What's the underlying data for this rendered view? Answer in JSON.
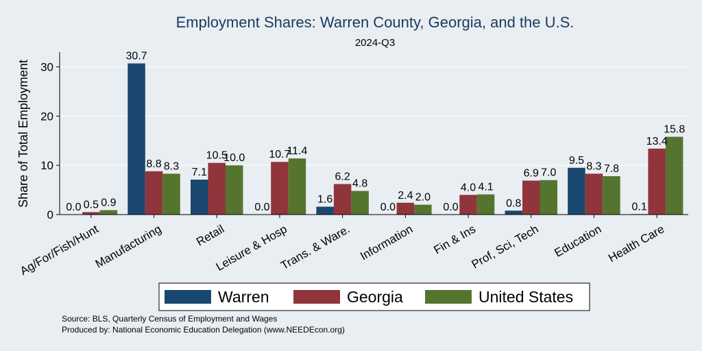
{
  "chart_data": {
    "type": "bar",
    "title": "Employment Shares: Warren County, Georgia, and the U.S.",
    "subtitle": "2024-Q3",
    "ylabel": "Share of Total Employment",
    "xlabel": "",
    "ylim": [
      0,
      33
    ],
    "yticks": [
      0,
      10,
      20,
      30
    ],
    "grid": true,
    "legend": "bottom",
    "categories": [
      "Ag/For/Fish/Hunt",
      "Manufacturing",
      "Retail",
      "Leisure & Hosp",
      "Trans. & Ware.",
      "Information",
      "Fin & Ins",
      "Prof, Sci, Tech",
      "Education",
      "Health Care"
    ],
    "series": [
      {
        "name": "Warren",
        "color": "#1a476f",
        "values": [
          0.0,
          30.7,
          7.1,
          0.0,
          1.6,
          0.0,
          0.0,
          0.8,
          9.5,
          0.1
        ],
        "labels": [
          "0.0",
          "30.7",
          "7.1",
          "0.0",
          "1.6",
          "0.0",
          "0.0",
          "0.8",
          "9.5",
          "0.1"
        ]
      },
      {
        "name": "Georgia",
        "color": "#90353b",
        "values": [
          0.5,
          8.8,
          10.5,
          10.7,
          6.2,
          2.4,
          4.0,
          6.9,
          8.3,
          13.4
        ],
        "labels": [
          "0.5",
          "8.8",
          "10.5",
          "10.7",
          "6.2",
          "2.4",
          "4.0",
          "6.9",
          "8.3",
          "13.4"
        ]
      },
      {
        "name": "United States",
        "color": "#55752f",
        "values": [
          0.9,
          8.3,
          10.0,
          11.4,
          4.8,
          2.0,
          4.1,
          7.0,
          7.8,
          15.8
        ],
        "labels": [
          "0.9",
          "8.3",
          "10.0",
          "11.4",
          "4.8",
          "2.0",
          "4.1",
          "7.0",
          "7.8",
          "15.8"
        ]
      }
    ]
  },
  "notes": {
    "source": "Source: BLS, Quarterly Census of Employment and Wages",
    "produced": "Produced by: National Economic Education Delegation (www.NEEDEcon.org)"
  }
}
